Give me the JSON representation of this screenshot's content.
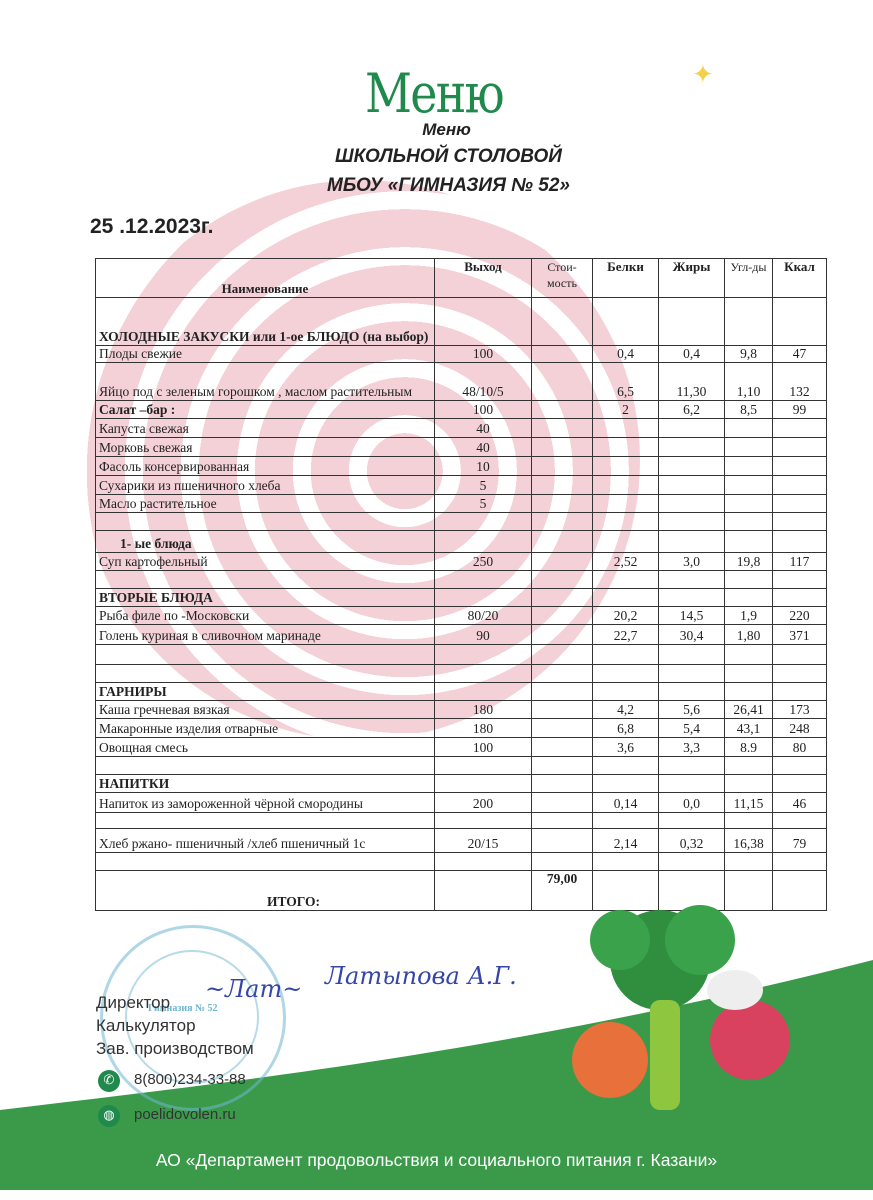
{
  "header": {
    "logo": "Меню",
    "subtitle": "Меню",
    "line1": "ШКОЛЬНОЙ СТОЛОВОЙ",
    "line2": "МБОУ «ГИМНАЗИЯ № 52»",
    "date": "25 .12.2023г."
  },
  "table": {
    "columns": [
      "Наименование",
      "Выход",
      "Стои-мость",
      "Белки",
      "Жиры",
      "Угл-ды",
      "Ккал"
    ],
    "rows": [
      {
        "name": "ХОЛОДНЫЕ ЗАКУСКИ или 1-ое БЛЮДО (на выбор)",
        "bold": true,
        "values": [
          "",
          "",
          "",
          "",
          "",
          ""
        ]
      },
      {
        "name": "Плоды свежие",
        "values": [
          "100",
          "",
          "0,4",
          "0,4",
          "9,8",
          "47"
        ]
      },
      {
        "name": "Яйцо под с зеленым горошком , маслом растительным",
        "values": [
          "48/10/5",
          "",
          "6,5",
          "11,30",
          "1,10",
          "132"
        ]
      },
      {
        "name": "Салат –бар :",
        "bold": true,
        "values": [
          "100",
          "",
          "2",
          "6,2",
          "8,5",
          "99"
        ]
      },
      {
        "name": "Капуста свежая",
        "values": [
          "40",
          "",
          "",
          "",
          "",
          ""
        ]
      },
      {
        "name": "Морковь свежая",
        "values": [
          "40",
          "",
          "",
          "",
          "",
          ""
        ]
      },
      {
        "name": "Фасоль консервированная",
        "values": [
          "10",
          "",
          "",
          "",
          "",
          ""
        ]
      },
      {
        "name": "Сухарики из пшеничного хлеба",
        "values": [
          "5",
          "",
          "",
          "",
          "",
          ""
        ]
      },
      {
        "name": "Масло растительное",
        "values": [
          "5",
          "",
          "",
          "",
          "",
          ""
        ]
      },
      {
        "name": "",
        "values": [
          "",
          "",
          "",
          "",
          "",
          ""
        ]
      },
      {
        "name": "1-   ые блюда",
        "bold": true,
        "indent": true,
        "values": [
          "",
          "",
          "",
          "",
          "",
          ""
        ]
      },
      {
        "name": "Суп картофельный",
        "values": [
          "250",
          "",
          "2,52",
          "3,0",
          "19,8",
          "117"
        ]
      },
      {
        "name": "",
        "values": [
          "",
          "",
          "",
          "",
          "",
          ""
        ]
      },
      {
        "name": "ВТОРЫЕ БЛЮДА",
        "bold": true,
        "values": [
          "",
          "",
          "",
          "",
          "",
          ""
        ]
      },
      {
        "name": "Рыба филе по -Московски",
        "values": [
          "80/20",
          "",
          "20,2",
          "14,5",
          "1,9",
          "220"
        ]
      },
      {
        "name": "Голень куриная в сливочном маринаде",
        "values": [
          "90",
          "",
          "22,7",
          "30,4",
          "1,80",
          "371"
        ]
      },
      {
        "name": "",
        "values": [
          "",
          "",
          "",
          "",
          "",
          ""
        ]
      },
      {
        "name": "",
        "values": [
          "",
          "",
          "",
          "",
          "",
          ""
        ]
      },
      {
        "name": "ГАРНИРЫ",
        "bold": true,
        "values": [
          "",
          "",
          "",
          "",
          "",
          ""
        ]
      },
      {
        "name": "Каша гречневая вязкая",
        "values": [
          "180",
          "",
          "4,2",
          "5,6",
          "26,41",
          "173"
        ]
      },
      {
        "name": "Макаронные изделия отварные",
        "values": [
          "180",
          "",
          "6,8",
          "5,4",
          "43,1",
          "248"
        ]
      },
      {
        "name": "Овощная смесь",
        "values": [
          "100",
          "",
          "3,6",
          "3,3",
          "8.9",
          "80"
        ]
      },
      {
        "name": "",
        "values": [
          "",
          "",
          "",
          "",
          "",
          ""
        ]
      },
      {
        "name": "НАПИТКИ",
        "bold": true,
        "values": [
          "",
          "",
          "",
          "",
          "",
          ""
        ]
      },
      {
        "name": "Напиток из замороженной чёрной смородины",
        "values": [
          "200",
          "",
          "0,14",
          "0,0",
          "11,15",
          "46"
        ]
      },
      {
        "name": "",
        "values": [
          "",
          "",
          "",
          "",
          "",
          ""
        ]
      },
      {
        "name": "Хлеб  ржано- пшеничный /хлеб пшеничный 1с",
        "values": [
          "20/15",
          "",
          "2,14",
          "0,32",
          "16,38",
          "79"
        ]
      },
      {
        "name": "",
        "values": [
          "",
          "",
          "",
          "",
          "",
          ""
        ]
      }
    ],
    "total": {
      "label": "ИТОГО:",
      "cost": "79,00"
    }
  },
  "footer": {
    "roles": [
      "Директор",
      "Калькулятор",
      "Зав. производством"
    ],
    "signature_name": "Латыпова А.Г.",
    "phone": "8(800)234-33-88",
    "website": "poelidovolen.ru",
    "stamp_text": "Гимназия № 52",
    "organization": "АО «Департамент продовольствия и социального питания г. Казани»"
  },
  "colors": {
    "brand_green": "#1f8a4c",
    "watermark_pink": "#f2c9cf",
    "signature_blue": "#3546a8"
  }
}
